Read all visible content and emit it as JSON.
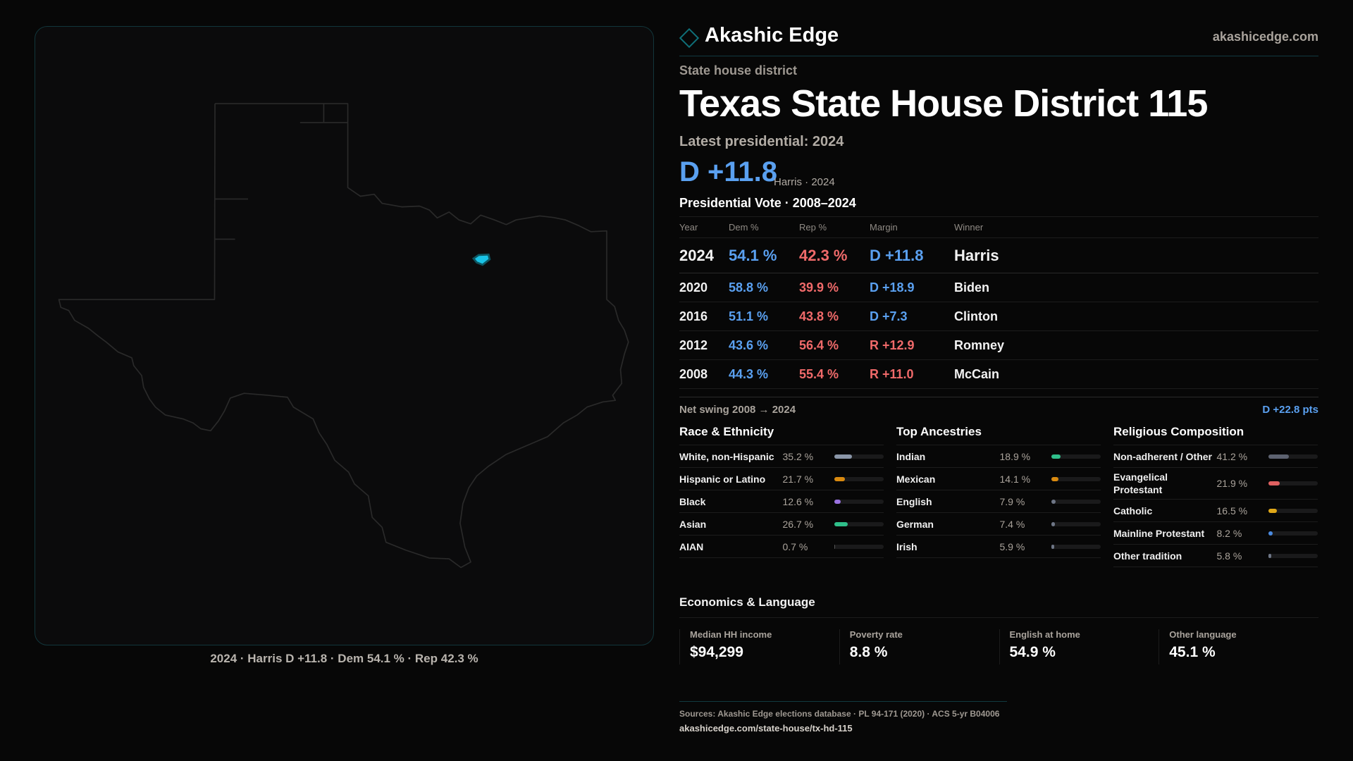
{
  "map": {
    "caption": "2024 · Harris D +11.8 · Dem 54.1 % · Rep 42.3 %",
    "highlight_color": "#19c3e6"
  },
  "header": {
    "brand": "Akashic Edge",
    "site": "akashicedge.com"
  },
  "district": {
    "type": "State house district",
    "title": "Texas  State House District 115",
    "latest_label": "Latest presidential: 2024",
    "latest_margin": "D +11.8",
    "latest_note": "Harris · 2024"
  },
  "presidential": {
    "heading": "Presidential Vote · 2008–2024",
    "columns": [
      "Year",
      "Dem %",
      "Rep %",
      "Margin",
      "Winner"
    ],
    "rows": [
      {
        "year": "2024",
        "dem": "54.1 %",
        "rep": "42.3 %",
        "margin": "D +11.8",
        "party": "D",
        "winner": "Harris"
      },
      {
        "year": "2020",
        "dem": "58.8 %",
        "rep": "39.9 %",
        "margin": "D +18.9",
        "party": "D",
        "winner": "Biden"
      },
      {
        "year": "2016",
        "dem": "51.1 %",
        "rep": "43.8 %",
        "margin": "D +7.3",
        "party": "D",
        "winner": "Clinton"
      },
      {
        "year": "2012",
        "dem": "43.6 %",
        "rep": "56.4 %",
        "margin": "R +12.9",
        "party": "R",
        "winner": "Romney"
      },
      {
        "year": "2008",
        "dem": "44.3 %",
        "rep": "55.4 %",
        "margin": "R +11.0",
        "party": "R",
        "winner": "McCain"
      }
    ],
    "swing_label": "Net swing 2008 → 2024",
    "swing_value": "D +22.8 pts"
  },
  "colors": {
    "dem": "#5aa0f0",
    "rep": "#f06a6a"
  },
  "sections": [
    {
      "title": "Race & Ethnicity",
      "items": [
        {
          "label": "White, non-Hispanic",
          "value": "35.2 %",
          "pct": 35.2,
          "color": "#8a96a8"
        },
        {
          "label": "Hispanic or Latino",
          "value": "21.7 %",
          "pct": 21.7,
          "color": "#d98a10"
        },
        {
          "label": "Black",
          "value": "12.6 %",
          "pct": 12.6,
          "color": "#9a72e0"
        },
        {
          "label": "Asian",
          "value": "26.7 %",
          "pct": 26.7,
          "color": "#2fbf8a"
        },
        {
          "label": "AIAN",
          "value": "0.7 %",
          "pct": 0.7,
          "color": "#555"
        }
      ]
    },
    {
      "title": "Top Ancestries",
      "items": [
        {
          "label": "Indian",
          "value": "18.9 %",
          "pct": 18.9,
          "color": "#2fbf8a"
        },
        {
          "label": "Mexican",
          "value": "14.1 %",
          "pct": 14.1,
          "color": "#d98a10"
        },
        {
          "label": "English",
          "value": "7.9 %",
          "pct": 7.9,
          "color": "#6e7686"
        },
        {
          "label": "German",
          "value": "7.4 %",
          "pct": 7.4,
          "color": "#6e7686"
        },
        {
          "label": "Irish",
          "value": "5.9 %",
          "pct": 5.9,
          "color": "#6e7686"
        }
      ]
    },
    {
      "title": "Religious Composition",
      "items": [
        {
          "label": "Non-adherent / Other",
          "value": "41.2 %",
          "pct": 41.2,
          "color": "#5d6270"
        },
        {
          "label": "Evangelical Protestant",
          "value": "21.9 %",
          "pct": 21.9,
          "color": "#e06060"
        },
        {
          "label": "Catholic",
          "value": "16.5 %",
          "pct": 16.5,
          "color": "#e0a818"
        },
        {
          "label": "Mainline Protestant",
          "value": "8.2 %",
          "pct": 8.2,
          "color": "#4a8ae0"
        },
        {
          "label": "Other tradition",
          "value": "5.8 %",
          "pct": 5.8,
          "color": "#6e7686"
        }
      ]
    }
  ],
  "economics": {
    "title": "Economics & Language",
    "cards": [
      {
        "label": "Median HH income",
        "value": "$94,299"
      },
      {
        "label": "Poverty rate",
        "value": "8.8 %"
      },
      {
        "label": "English at home",
        "value": "54.9 %"
      },
      {
        "label": "Other language",
        "value": "45.1 %"
      }
    ]
  },
  "footer": {
    "sources": "Sources: Akashic Edge elections database · PL 94-171 (2020) · ACS 5-yr B04006",
    "url": "akashicedge.com/state-house/tx-hd-115"
  }
}
